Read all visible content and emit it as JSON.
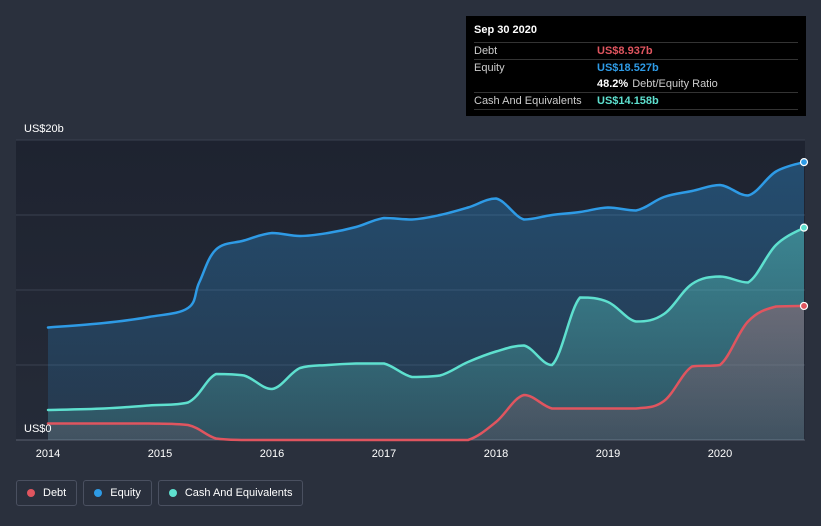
{
  "tooltip": {
    "date": "Sep 30 2020",
    "debt_label": "Debt",
    "debt_value": "US$8.937b",
    "equity_label": "Equity",
    "equity_value": "US$18.527b",
    "ratio_value": "48.2%",
    "ratio_label": "Debt/Equity Ratio",
    "cash_label": "Cash And Equivalents",
    "cash_value": "US$14.158b"
  },
  "legend": {
    "debt": "Debt",
    "equity": "Equity",
    "cash": "Cash And Equivalents"
  },
  "colors": {
    "debt": "#e0555f",
    "equity": "#2e9be6",
    "cash": "#5ee0cf",
    "background": "#2a303d"
  },
  "chart_data": {
    "type": "area",
    "y_axis_labels": [
      "US$20b",
      "US$0"
    ],
    "ylim": [
      0,
      20
    ],
    "y_unit": "US$ billions",
    "xlim": [
      2014.0,
      2020.75
    ],
    "x_ticks": [
      {
        "value": 2014,
        "label": "2014"
      },
      {
        "value": 2015,
        "label": "2015"
      },
      {
        "value": 2016,
        "label": "2016"
      },
      {
        "value": 2017,
        "label": "2017"
      },
      {
        "value": 2018,
        "label": "2018"
      },
      {
        "value": 2019,
        "label": "2019"
      },
      {
        "value": 2020,
        "label": "2020"
      }
    ],
    "grid": true,
    "series": [
      {
        "name": "Equity",
        "key": "equity",
        "points": [
          [
            2014.0,
            7.5
          ],
          [
            2014.5,
            7.8
          ],
          [
            2014.9,
            8.2
          ],
          [
            2015.25,
            8.8
          ],
          [
            2015.35,
            10.5
          ],
          [
            2015.5,
            12.7
          ],
          [
            2015.75,
            13.3
          ],
          [
            2016.0,
            13.8
          ],
          [
            2016.25,
            13.6
          ],
          [
            2016.5,
            13.8
          ],
          [
            2016.75,
            14.2
          ],
          [
            2017.0,
            14.8
          ],
          [
            2017.25,
            14.7
          ],
          [
            2017.5,
            15.0
          ],
          [
            2017.75,
            15.5
          ],
          [
            2018.0,
            16.1
          ],
          [
            2018.25,
            14.7
          ],
          [
            2018.5,
            15.0
          ],
          [
            2018.75,
            15.2
          ],
          [
            2019.0,
            15.5
          ],
          [
            2019.25,
            15.3
          ],
          [
            2019.5,
            16.2
          ],
          [
            2019.75,
            16.6
          ],
          [
            2020.0,
            17.0
          ],
          [
            2020.25,
            16.3
          ],
          [
            2020.5,
            17.9
          ],
          [
            2020.75,
            18.527
          ]
        ]
      },
      {
        "name": "Cash And Equivalents",
        "key": "cash",
        "points": [
          [
            2014.0,
            2.0
          ],
          [
            2014.5,
            2.1
          ],
          [
            2014.9,
            2.3
          ],
          [
            2015.25,
            2.5
          ],
          [
            2015.5,
            4.4
          ],
          [
            2015.75,
            4.3
          ],
          [
            2016.0,
            3.4
          ],
          [
            2016.25,
            4.8
          ],
          [
            2016.5,
            5.0
          ],
          [
            2016.75,
            5.1
          ],
          [
            2017.0,
            5.1
          ],
          [
            2017.25,
            4.2
          ],
          [
            2017.5,
            4.3
          ],
          [
            2017.75,
            5.2
          ],
          [
            2018.0,
            5.9
          ],
          [
            2018.25,
            6.3
          ],
          [
            2018.5,
            5.0
          ],
          [
            2018.75,
            9.5
          ],
          [
            2019.0,
            9.2
          ],
          [
            2019.25,
            7.9
          ],
          [
            2019.5,
            8.4
          ],
          [
            2019.75,
            10.4
          ],
          [
            2020.0,
            10.9
          ],
          [
            2020.25,
            10.5
          ],
          [
            2020.5,
            13.0
          ],
          [
            2020.75,
            14.158
          ]
        ]
      },
      {
        "name": "Debt",
        "key": "debt",
        "points": [
          [
            2014.0,
            1.1
          ],
          [
            2014.5,
            1.1
          ],
          [
            2014.9,
            1.1
          ],
          [
            2015.25,
            1.0
          ],
          [
            2015.5,
            0.1
          ],
          [
            2015.75,
            0.0
          ],
          [
            2016.0,
            0.0
          ],
          [
            2016.5,
            0.0
          ],
          [
            2017.0,
            0.0
          ],
          [
            2017.5,
            0.0
          ],
          [
            2017.75,
            0.0
          ],
          [
            2018.0,
            1.2
          ],
          [
            2018.25,
            3.0
          ],
          [
            2018.5,
            2.1
          ],
          [
            2018.75,
            2.1
          ],
          [
            2019.0,
            2.1
          ],
          [
            2019.25,
            2.1
          ],
          [
            2019.5,
            2.6
          ],
          [
            2019.75,
            4.9
          ],
          [
            2020.0,
            5.0
          ],
          [
            2020.25,
            7.9
          ],
          [
            2020.5,
            8.9
          ],
          [
            2020.75,
            8.937
          ]
        ]
      }
    ]
  }
}
